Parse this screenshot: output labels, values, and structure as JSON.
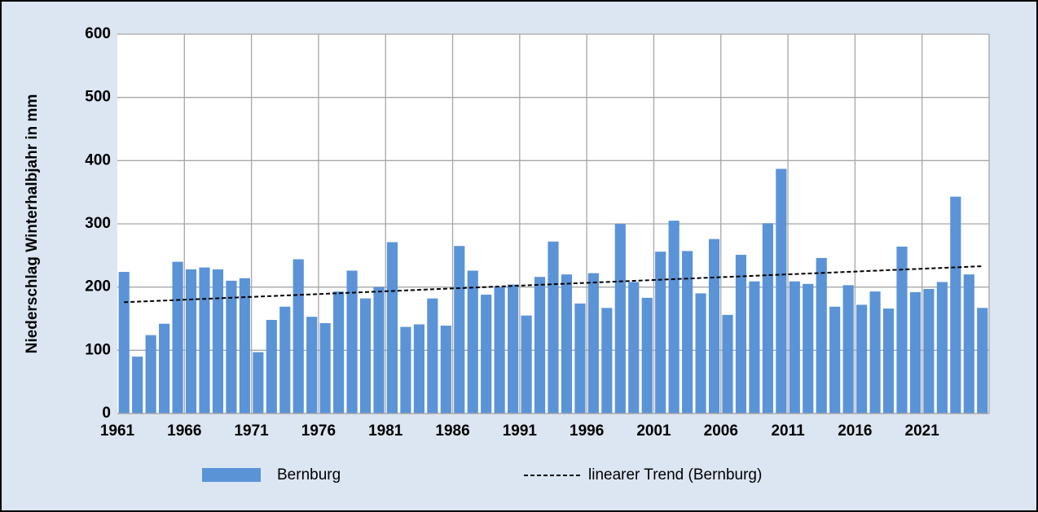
{
  "chart_data": {
    "type": "bar",
    "y_label": "Niederschlag Winterhalbjahr in mm",
    "categories": [
      "1961",
      null,
      null,
      null,
      null,
      "1966",
      null,
      null,
      null,
      null,
      "1971",
      null,
      null,
      null,
      null,
      "1976",
      null,
      null,
      null,
      null,
      "1981",
      null,
      null,
      null,
      null,
      "1986",
      null,
      null,
      null,
      null,
      "1991",
      null,
      null,
      null,
      null,
      "1996",
      null,
      null,
      null,
      null,
      "2001",
      null,
      null,
      null,
      null,
      "2006",
      null,
      null,
      null,
      null,
      "2011",
      null,
      null,
      null,
      null,
      "2016",
      null,
      null,
      null,
      null,
      "2021",
      null,
      null,
      null,
      null
    ],
    "series": [
      {
        "name": "Bernburg",
        "color": "#5b93d7",
        "values": [
          224,
          90,
          124,
          142,
          240,
          228,
          231,
          228,
          210,
          214,
          97,
          148,
          169,
          244,
          153,
          143,
          193,
          226,
          182,
          200,
          271,
          137,
          141,
          182,
          139,
          265,
          226,
          188,
          200,
          204,
          155,
          216,
          272,
          220,
          174,
          222,
          167,
          300,
          208,
          183,
          256,
          305,
          257,
          190,
          276,
          156,
          251,
          209,
          301,
          387,
          209,
          205,
          246,
          169,
          203,
          172,
          193,
          166,
          264,
          192,
          197,
          208,
          343,
          220,
          167
        ]
      }
    ],
    "trend": {
      "name": "linearer Trend (Bernburg)",
      "color": "#000000",
      "values": [
        176,
        233
      ]
    },
    "ylim": [
      0,
      600
    ],
    "yticks": [
      0,
      100,
      200,
      300,
      400,
      500,
      600
    ],
    "grid": true
  }
}
